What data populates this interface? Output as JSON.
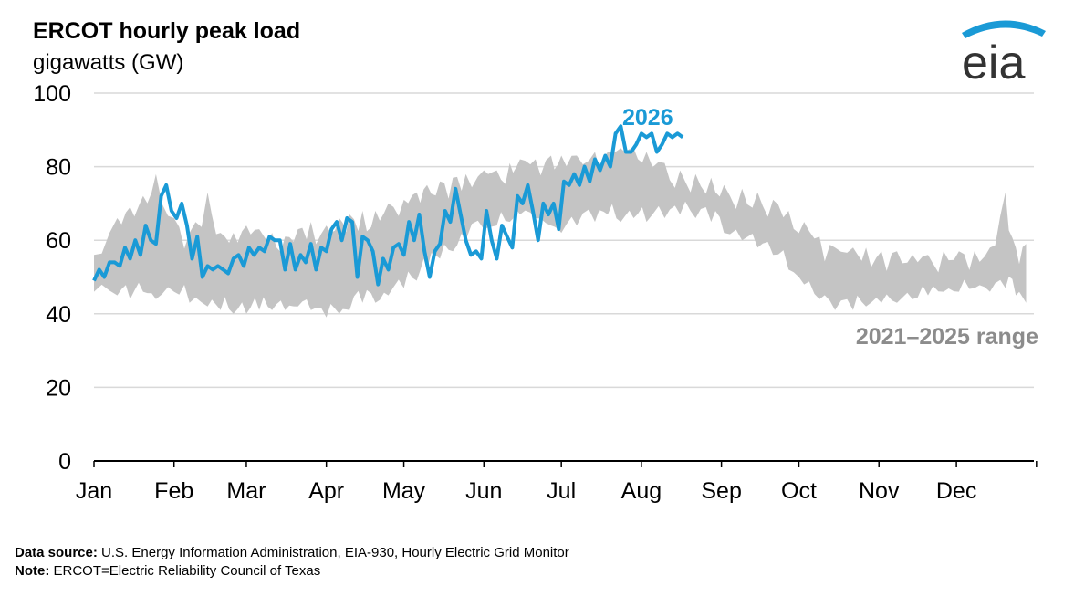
{
  "header": {
    "title": "ERCOT hourly peak load",
    "subtitle": "gigawatts (GW)"
  },
  "logo": {
    "text": "eia",
    "icon": "eia-logo"
  },
  "footer": {
    "source_label": "Data source:",
    "source_text": "U.S. Energy Information Administration, EIA-930, Hourly Electric Grid Monitor",
    "note_label": "Note:",
    "note_text": "ERCOT=Electric Reliability Council of Texas"
  },
  "colors": {
    "line": "#1a9ad6",
    "range": "#c4c4c4",
    "range_label": "#8c8c8c",
    "grid": "#d9d9d9"
  },
  "chart_data": {
    "type": "area",
    "title": "ERCOT hourly peak load",
    "ylabel": "gigawatts (GW)",
    "ylim": [
      0,
      100
    ],
    "yticks": [
      "0",
      "20",
      "40",
      "60",
      "80",
      "100"
    ],
    "xticks": [
      "Jan",
      "Feb",
      "Mar",
      "Apr",
      "May",
      "Jun",
      "Jul",
      "Aug",
      "Sep",
      "Oct",
      "Nov",
      "Dec"
    ],
    "series": [
      {
        "name": "2021–2025 range",
        "kind": "range",
        "x": [
          1,
          10,
          15,
          20,
          25,
          32,
          38,
          45,
          50,
          55,
          60,
          65,
          70,
          75,
          80,
          85,
          91,
          96,
          100,
          105,
          110,
          115,
          121,
          126,
          130,
          135,
          140,
          145,
          152,
          157,
          162,
          166,
          172,
          178,
          182,
          188,
          195,
          200,
          205,
          210,
          215,
          222,
          228,
          234,
          240,
          245,
          252,
          258,
          264,
          270,
          276,
          282,
          288,
          295,
          300,
          306,
          312,
          318,
          324,
          330,
          336,
          342,
          348,
          354,
          358,
          362
        ],
        "low": [
          46,
          45,
          44,
          46,
          44,
          46,
          43,
          42,
          41,
          40,
          40,
          41,
          41,
          41,
          42,
          41,
          39,
          40,
          41,
          43,
          43,
          45,
          47,
          49,
          52,
          55,
          57,
          60,
          63,
          64,
          65,
          67,
          66,
          64,
          62,
          64,
          65,
          67,
          65,
          66,
          65,
          66,
          67,
          66,
          65,
          62,
          60,
          58,
          56,
          52,
          48,
          44,
          41,
          41,
          42,
          43,
          43,
          44,
          45,
          46,
          46,
          47,
          46,
          47,
          45,
          43
        ],
        "high": [
          56,
          66,
          69,
          72,
          78,
          66,
          62,
          73,
          62,
          62,
          64,
          63,
          62,
          61,
          63,
          65,
          64,
          66,
          67,
          68,
          68,
          70,
          71,
          73,
          75,
          76,
          77,
          78,
          79,
          79,
          81,
          82,
          82,
          83,
          83,
          83,
          84,
          84,
          85,
          85,
          84,
          81,
          79,
          78,
          77,
          75,
          74,
          73,
          71,
          68,
          65,
          61,
          58,
          58,
          58,
          57,
          57,
          56,
          56,
          57,
          57,
          57,
          58,
          73,
          58,
          59
        ]
      },
      {
        "name": "2026",
        "kind": "line",
        "x": [
          1,
          3,
          5,
          7,
          9,
          11,
          13,
          15,
          17,
          19,
          21,
          23,
          25,
          27,
          29,
          31,
          33,
          35,
          37,
          39,
          41,
          43,
          45,
          47,
          49,
          51,
          53,
          55,
          57,
          59,
          61,
          63,
          65,
          67,
          69,
          71,
          73,
          75,
          77,
          79,
          81,
          83,
          85,
          87,
          89,
          91,
          93,
          95,
          97,
          99,
          101,
          103,
          105,
          107,
          109,
          111,
          113,
          115,
          117,
          119,
          121,
          123,
          125,
          127,
          129,
          131,
          133,
          135,
          137,
          139,
          141,
          143,
          145,
          147,
          149,
          151,
          153,
          155,
          157,
          159,
          161,
          163,
          165,
          167,
          169,
          171,
          173,
          175,
          177,
          179,
          181,
          183,
          185,
          187,
          189,
          191,
          193,
          195,
          197,
          199,
          201,
          203,
          205
        ],
        "values": [
          49,
          52,
          50,
          54,
          54,
          53,
          58,
          55,
          60,
          56,
          64,
          60,
          59,
          72,
          75,
          68,
          66,
          70,
          64,
          55,
          61,
          50,
          53,
          52,
          53,
          52,
          51,
          55,
          56,
          53,
          58,
          56,
          58,
          57,
          61,
          60,
          60,
          52,
          59,
          52,
          56,
          54,
          59,
          52,
          58,
          57,
          63,
          65,
          60,
          66,
          65,
          50,
          61,
          60,
          57,
          48,
          55,
          52,
          58,
          59,
          56,
          65,
          60,
          67,
          57,
          50,
          57,
          59,
          68,
          65,
          74,
          67,
          60,
          56,
          57,
          55,
          68,
          60,
          55,
          64,
          61,
          58,
          72,
          70,
          75,
          68,
          60,
          70,
          67,
          70,
          63,
          76,
          75,
          78,
          75,
          80,
          76,
          82,
          79,
          83,
          80,
          89,
          91
        ],
        "end_x": [
          207,
          209,
          211,
          213,
          215,
          217,
          219,
          221,
          223,
          225,
          227,
          229
        ],
        "end_values": [
          84,
          84,
          86,
          89,
          88,
          89,
          84,
          86,
          89,
          88,
          89,
          88
        ]
      }
    ],
    "annotations": [
      "2026",
      "2021–2025 range"
    ],
    "grid": true
  }
}
